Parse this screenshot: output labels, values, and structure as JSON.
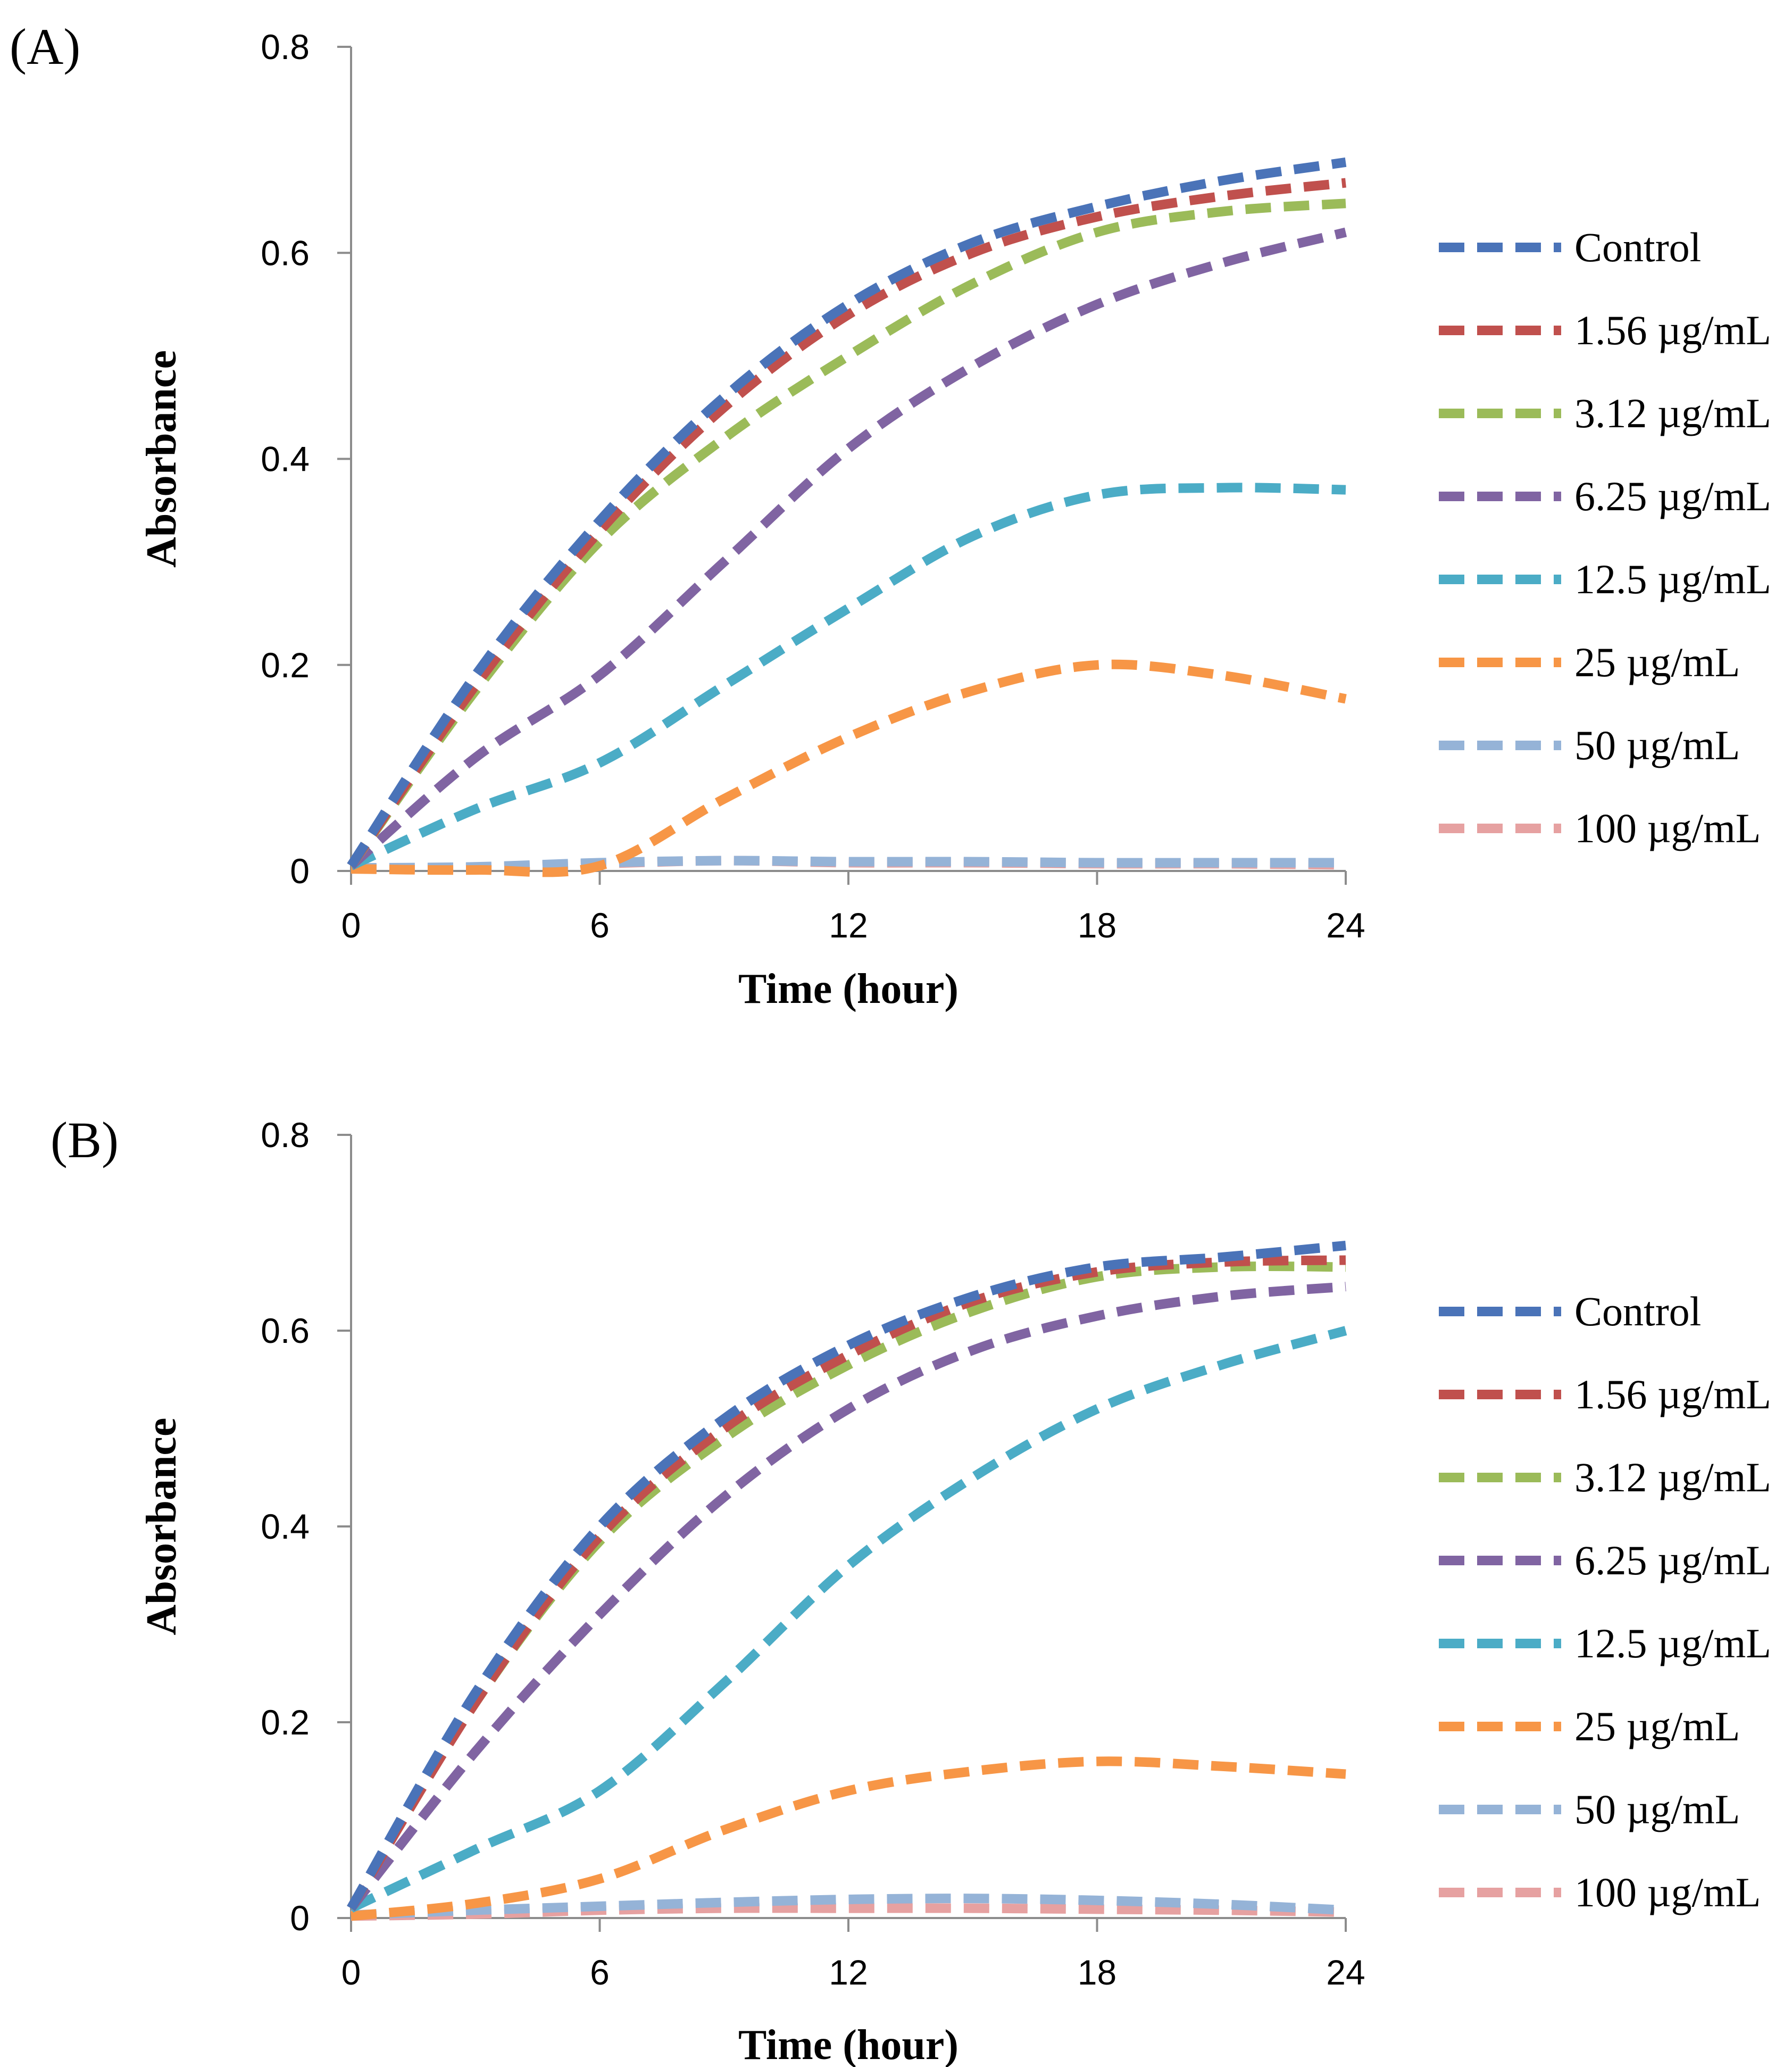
{
  "chart_data": [
    {
      "type": "line",
      "panel_label": "(A)",
      "xlabel": "Time (hour)",
      "ylabel": "Absorbance",
      "xlim": [
        0,
        24
      ],
      "ylim": [
        0,
        0.8
      ],
      "xticks": [
        0,
        6,
        12,
        18,
        24
      ],
      "yticks": [
        0,
        0.2,
        0.4,
        0.6,
        0.8
      ],
      "xtick_labels": [
        "0",
        "6",
        "12",
        "18",
        "24"
      ],
      "ytick_labels": [
        "0",
        "0.2",
        "0.4",
        "0.6",
        "0.8"
      ],
      "grid": false,
      "legend_position": "right",
      "x": [
        0,
        3,
        6,
        9,
        12,
        15,
        18,
        21,
        24
      ],
      "series": [
        {
          "name": "Control",
          "color": "#4a73b8",
          "values": [
            0.005,
            0.19,
            0.34,
            0.46,
            0.55,
            0.61,
            0.645,
            0.67,
            0.688
          ]
        },
        {
          "name": "1.56 µg/mL",
          "color": "#c0504d",
          "values": [
            0.005,
            0.18,
            0.33,
            0.45,
            0.54,
            0.6,
            0.635,
            0.655,
            0.668
          ]
        },
        {
          "name": "3.12 µg/mL",
          "color": "#9bbb59",
          "values": [
            0.005,
            0.175,
            0.32,
            0.42,
            0.5,
            0.57,
            0.62,
            0.64,
            0.648
          ]
        },
        {
          "name": "6.25 µg/mL",
          "color": "#8064a2",
          "values": [
            0.005,
            0.11,
            0.19,
            0.3,
            0.41,
            0.49,
            0.55,
            0.59,
            0.62
          ]
        },
        {
          "name": "12.5 µg/mL",
          "color": "#4bacc6",
          "values": [
            0.005,
            0.06,
            0.105,
            0.18,
            0.255,
            0.325,
            0.365,
            0.372,
            0.37
          ]
        },
        {
          "name": "25 µg/mL",
          "color": "#f79646",
          "values": [
            0.002,
            0.001,
            0.005,
            0.07,
            0.13,
            0.175,
            0.2,
            0.19,
            0.167
          ]
        },
        {
          "name": "50 µg/mL",
          "color": "#95b3d7",
          "values": [
            0.003,
            0.004,
            0.008,
            0.01,
            0.009,
            0.009,
            0.008,
            0.008,
            0.008
          ]
        },
        {
          "name": "100 µg/mL",
          "color": "#e6a1a1",
          "values": [
            0.002,
            0.003,
            0.007,
            0.01,
            0.008,
            0.008,
            0.007,
            0.007,
            0.006
          ]
        }
      ]
    },
    {
      "type": "line",
      "panel_label": "(B)",
      "xlabel": "Time (hour)",
      "ylabel": "Absorbance",
      "xlim": [
        0,
        24
      ],
      "ylim": [
        0,
        0.8
      ],
      "xticks": [
        0,
        6,
        12,
        18,
        24
      ],
      "yticks": [
        0,
        0.2,
        0.4,
        0.6,
        0.8
      ],
      "xtick_labels": [
        "0",
        "6",
        "12",
        "18",
        "24"
      ],
      "ytick_labels": [
        "0",
        "0.2",
        "0.4",
        "0.6",
        "0.8"
      ],
      "grid": false,
      "legend_position": "right",
      "x": [
        0,
        3,
        6,
        9,
        12,
        15,
        18,
        21,
        24
      ],
      "series": [
        {
          "name": "Control",
          "color": "#4a73b8",
          "values": [
            0.01,
            0.23,
            0.4,
            0.51,
            0.585,
            0.635,
            0.665,
            0.675,
            0.687
          ]
        },
        {
          "name": "1.56 µg/mL",
          "color": "#c0504d",
          "values": [
            0.01,
            0.22,
            0.39,
            0.5,
            0.575,
            0.63,
            0.66,
            0.67,
            0.672
          ]
        },
        {
          "name": "3.12 µg/mL",
          "color": "#9bbb59",
          "values": [
            0.01,
            0.22,
            0.385,
            0.49,
            0.565,
            0.62,
            0.655,
            0.665,
            0.665
          ]
        },
        {
          "name": "6.25 µg/mL",
          "color": "#8064a2",
          "values": [
            0.01,
            0.17,
            0.31,
            0.43,
            0.52,
            0.58,
            0.615,
            0.635,
            0.645
          ]
        },
        {
          "name": "12.5 µg/mL",
          "color": "#4bacc6",
          "values": [
            0.01,
            0.07,
            0.13,
            0.24,
            0.36,
            0.45,
            0.52,
            0.565,
            0.6
          ]
        },
        {
          "name": "25 µg/mL",
          "color": "#f79646",
          "values": [
            0.002,
            0.015,
            0.04,
            0.09,
            0.13,
            0.15,
            0.16,
            0.155,
            0.147
          ]
        },
        {
          "name": "50 µg/mL",
          "color": "#95b3d7",
          "values": [
            0.003,
            0.008,
            0.012,
            0.016,
            0.019,
            0.02,
            0.018,
            0.014,
            0.008
          ]
        },
        {
          "name": "100 µg/mL",
          "color": "#e6a1a1",
          "values": [
            0.002,
            0.004,
            0.008,
            0.01,
            0.01,
            0.01,
            0.009,
            0.008,
            0.006
          ]
        }
      ]
    }
  ]
}
